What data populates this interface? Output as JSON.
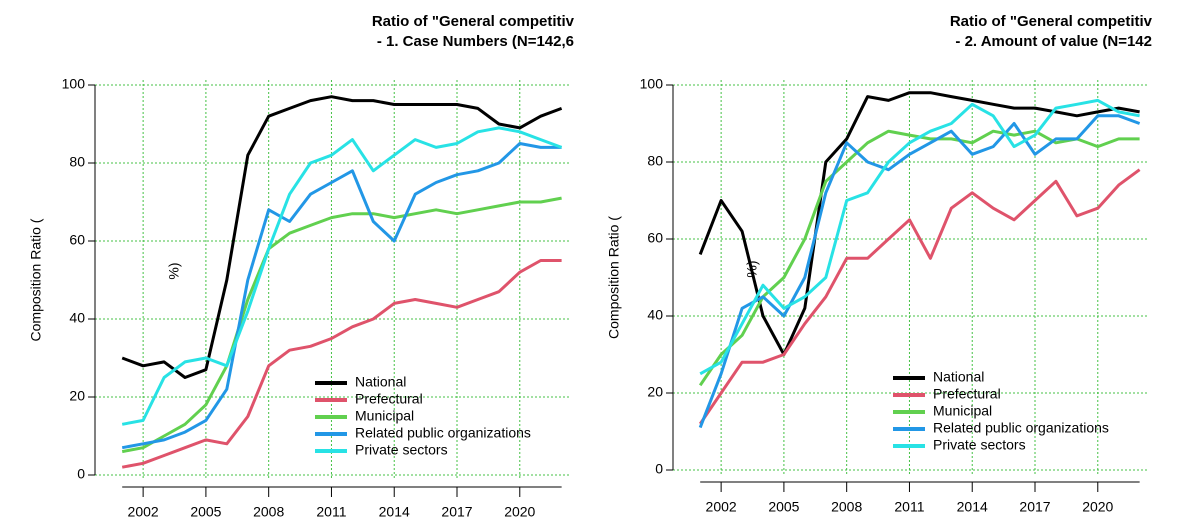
{
  "chart_data": [
    {
      "type": "line",
      "title": "Ratio of \"General competitiv",
      "subtitle": "- 1. Case Numbers (N=142,6",
      "ylabel": "Composition Ratio (",
      "annotation": "%)",
      "x": [
        2001,
        2002,
        2003,
        2004,
        2005,
        2006,
        2007,
        2008,
        2009,
        2010,
        2011,
        2012,
        2013,
        2014,
        2015,
        2016,
        2017,
        2018,
        2019,
        2020,
        2021,
        2022
      ],
      "xlim": [
        1999.7,
        2022.4
      ],
      "xticks": [
        2002,
        2005,
        2008,
        2011,
        2014,
        2017,
        2020
      ],
      "ylim": [
        0,
        100
      ],
      "yticks": [
        0,
        20,
        40,
        60,
        80,
        100
      ],
      "grid": true,
      "legend": "bottom-right",
      "series": [
        {
          "name": "National",
          "color": "#000000",
          "values": [
            30,
            28,
            29,
            25,
            27,
            50,
            82,
            92,
            94,
            96,
            97,
            96,
            96,
            95,
            95,
            95,
            95,
            94,
            90,
            89,
            92,
            94
          ]
        },
        {
          "name": "Prefectural",
          "color": "#df536b",
          "values": [
            2,
            3,
            5,
            7,
            9,
            8,
            15,
            28,
            32,
            33,
            35,
            38,
            40,
            44,
            45,
            44,
            43,
            45,
            47,
            52,
            55,
            55
          ]
        },
        {
          "name": "Municipal",
          "color": "#61d04f",
          "values": [
            6,
            7,
            10,
            13,
            18,
            28,
            45,
            58,
            62,
            64,
            66,
            67,
            67,
            66,
            67,
            68,
            67,
            68,
            69,
            70,
            70,
            71
          ]
        },
        {
          "name": "Related public organizations",
          "color": "#2297e6",
          "values": [
            7,
            8,
            9,
            11,
            14,
            22,
            50,
            68,
            65,
            72,
            75,
            78,
            65,
            60,
            72,
            75,
            77,
            78,
            80,
            85,
            84,
            84
          ]
        },
        {
          "name": "Private sectors",
          "color": "#28e2e5",
          "values": [
            13,
            14,
            25,
            29,
            30,
            28,
            42,
            58,
            72,
            80,
            82,
            86,
            78,
            82,
            86,
            84,
            85,
            88,
            89,
            88,
            86,
            84
          ]
        }
      ]
    },
    {
      "type": "line",
      "title": "Ratio of \"General competitiv",
      "subtitle": "- 2. Amount of value (N=142",
      "ylabel": "Composition Ratio (",
      "annotation": "%)",
      "x": [
        2001,
        2002,
        2003,
        2004,
        2005,
        2006,
        2007,
        2008,
        2009,
        2010,
        2011,
        2012,
        2013,
        2014,
        2015,
        2016,
        2017,
        2018,
        2019,
        2020,
        2021,
        2022
      ],
      "xlim": [
        1999.7,
        2022.4
      ],
      "xticks": [
        2002,
        2005,
        2008,
        2011,
        2014,
        2017,
        2020
      ],
      "ylim": [
        0,
        100
      ],
      "yticks": [
        0,
        20,
        40,
        60,
        80,
        100
      ],
      "grid": true,
      "legend": "bottom-right",
      "series": [
        {
          "name": "National",
          "color": "#000000",
          "values": [
            56,
            70,
            62,
            40,
            30,
            42,
            80,
            86,
            97,
            96,
            98,
            98,
            97,
            96,
            95,
            94,
            94,
            93,
            92,
            93,
            94,
            93
          ]
        },
        {
          "name": "Prefectural",
          "color": "#df536b",
          "values": [
            12,
            20,
            28,
            28,
            30,
            38,
            45,
            55,
            55,
            60,
            65,
            55,
            68,
            72,
            68,
            65,
            70,
            75,
            66,
            68,
            74,
            78
          ]
        },
        {
          "name": "Municipal",
          "color": "#61d04f",
          "values": [
            22,
            30,
            35,
            45,
            50,
            60,
            75,
            80,
            85,
            88,
            87,
            86,
            86,
            85,
            88,
            87,
            88,
            85,
            86,
            84,
            86,
            86
          ]
        },
        {
          "name": "Related public organizations",
          "color": "#2297e6",
          "values": [
            11,
            25,
            42,
            45,
            40,
            50,
            72,
            85,
            80,
            78,
            82,
            85,
            88,
            82,
            84,
            90,
            82,
            86,
            86,
            92,
            92,
            90
          ]
        },
        {
          "name": "Private sectors",
          "color": "#28e2e5",
          "values": [
            25,
            28,
            38,
            48,
            42,
            45,
            50,
            70,
            72,
            80,
            85,
            88,
            90,
            95,
            92,
            84,
            87,
            94,
            95,
            96,
            93,
            92
          ]
        }
      ]
    }
  ]
}
